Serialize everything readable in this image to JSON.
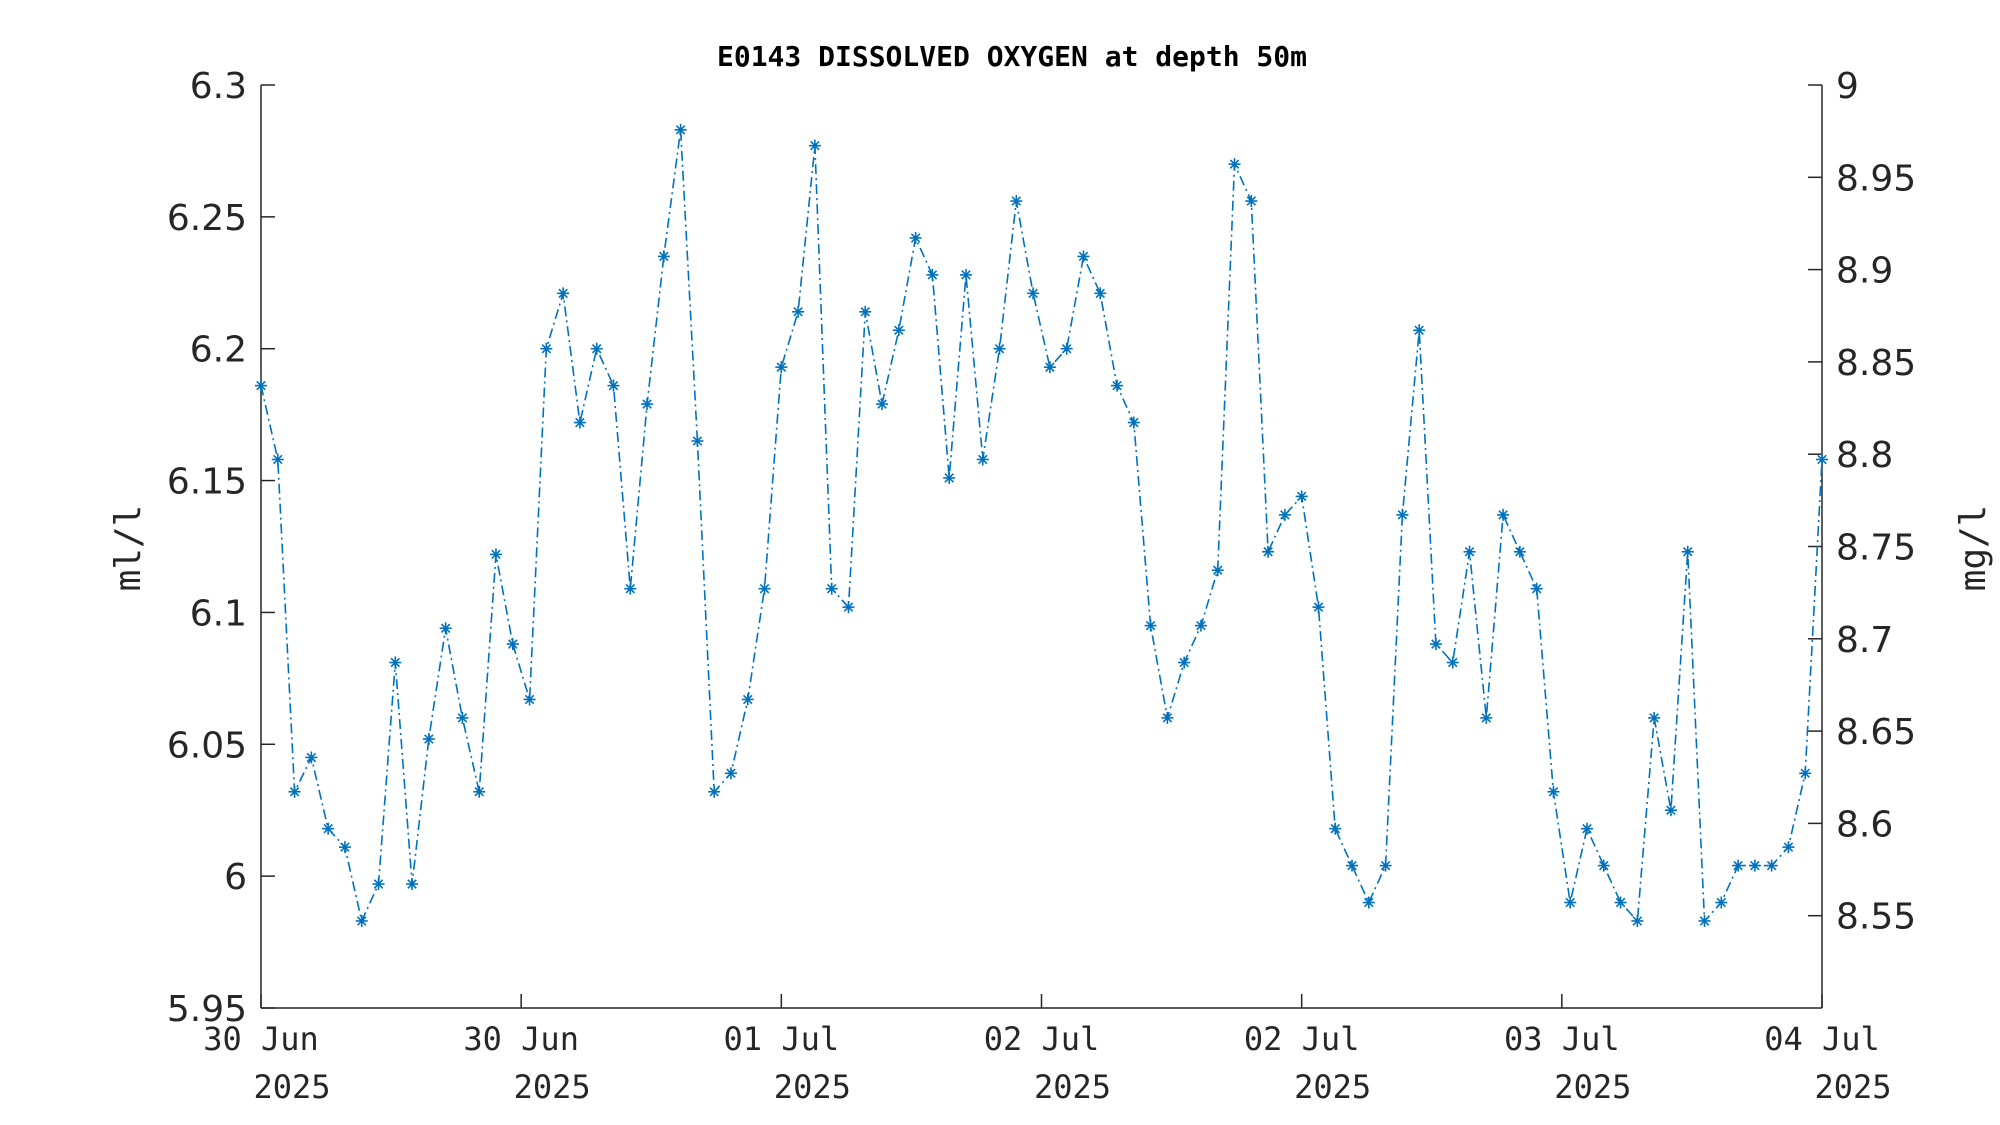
{
  "chart_data": {
    "type": "line",
    "title": "E0143 DISSOLVED OXYGEN at depth 50m",
    "ylabel": "ml/l",
    "ylabel_right": "mg/l",
    "ylim": [
      5.95,
      6.3
    ],
    "ylim_right": [
      8.5,
      9.0
    ],
    "yticks": [
      "5.95",
      "6",
      "6.05",
      "6.1",
      "6.15",
      "6.2",
      "6.25",
      "6.3"
    ],
    "yticks_right": [
      "8.55",
      "8.6",
      "8.65",
      "8.7",
      "8.75",
      "8.8",
      "8.85",
      "8.9",
      "8.95",
      "9"
    ],
    "xticks": [
      {
        "day": "30 Jun",
        "year": "2025"
      },
      {
        "day": "30 Jun",
        "year": "2025"
      },
      {
        "day": "01 Jul",
        "year": "2025"
      },
      {
        "day": "02 Jul",
        "year": "2025"
      },
      {
        "day": "02 Jul",
        "year": "2025"
      },
      {
        "day": "03 Jul",
        "year": "2025"
      },
      {
        "day": "04 Jul",
        "year": "2025"
      }
    ],
    "marker": "asterisk",
    "line_style": "dash-dot",
    "color": "#0072BD",
    "grid": false,
    "series": [
      {
        "values": [
          6.186,
          6.158,
          6.032,
          6.045,
          6.018,
          6.011,
          5.983,
          5.997,
          6.081,
          5.997,
          6.052,
          6.094,
          6.06,
          6.032,
          6.122,
          6.088,
          6.067,
          6.2,
          6.221,
          6.172,
          6.2,
          6.186,
          6.109,
          6.179,
          6.235,
          6.283,
          6.165,
          6.032,
          6.039,
          6.067,
          6.109,
          6.193,
          6.214,
          6.277,
          6.109,
          6.102,
          6.214,
          6.179,
          6.207,
          6.242,
          6.228,
          6.151,
          6.228,
          6.158,
          6.2,
          6.256,
          6.221,
          6.193,
          6.2,
          6.235,
          6.221,
          6.186,
          6.172,
          6.095,
          6.06,
          6.081,
          6.095,
          6.116,
          6.27,
          6.256,
          6.123,
          6.137,
          6.144,
          6.102,
          6.018,
          6.004,
          5.99,
          6.004,
          6.137,
          6.207,
          6.088,
          6.081,
          6.123,
          6.06,
          6.137,
          6.123,
          6.109,
          6.032,
          5.99,
          6.018,
          6.004,
          5.99,
          5.983,
          6.06,
          6.025,
          6.123,
          5.983,
          5.99,
          6.004,
          6.004,
          6.004,
          6.011,
          6.039,
          6.158
        ]
      }
    ]
  }
}
